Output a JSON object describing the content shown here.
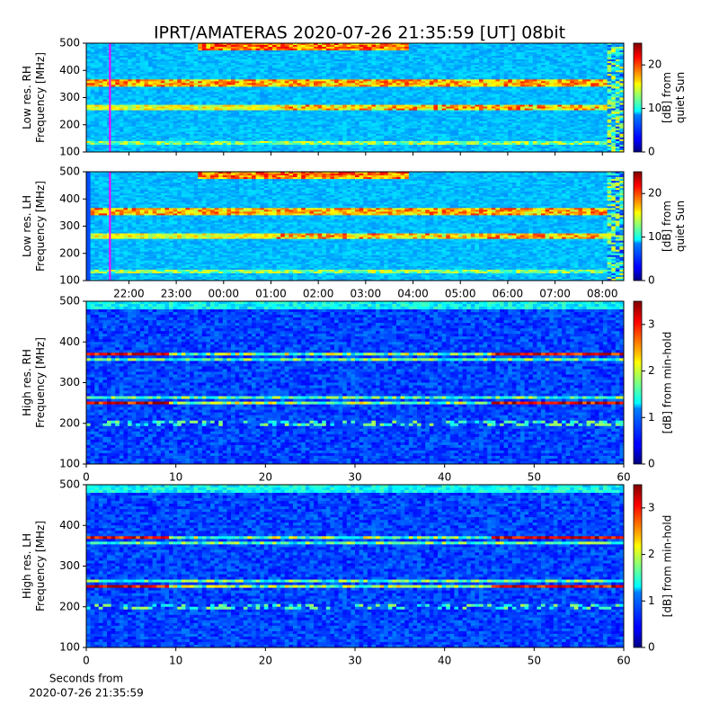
{
  "title": "IPRT/AMATERAS 2020-07-26 21:35:59 [UT]   08bit",
  "chart_data": [
    {
      "type": "heatmap",
      "ylabel": [
        "Low res. RH",
        "Frequency [MHz]"
      ],
      "xlim": [
        21.1,
        32.45
      ],
      "xticks": [
        22,
        23,
        24,
        25,
        26,
        27,
        28,
        29,
        30,
        31,
        32
      ],
      "ylim": [
        100,
        500
      ],
      "yticks": [
        100,
        200,
        300,
        400,
        500
      ],
      "marker_x": 21.6,
      "marker_color": "#ff00ff",
      "colorbar_label": [
        "[dB] from",
        "quiet Sun"
      ],
      "clim": [
        0,
        25
      ],
      "cticks": [
        0,
        10,
        20
      ]
    },
    {
      "type": "heatmap",
      "ylabel": [
        "Low res. LH",
        "Frequency [MHz]"
      ],
      "xlim": [
        21.1,
        32.45
      ],
      "xticks": [
        {
          "value": 22,
          "label": "22:00"
        },
        {
          "value": 23,
          "label": "23:00"
        },
        {
          "value": 24,
          "label": "00:00"
        },
        {
          "value": 25,
          "label": "01:00"
        },
        {
          "value": 26,
          "label": "02:00"
        },
        {
          "value": 27,
          "label": "03:00"
        },
        {
          "value": 28,
          "label": "04:00"
        },
        {
          "value": 29,
          "label": "05:00"
        },
        {
          "value": 30,
          "label": "06:00"
        },
        {
          "value": 31,
          "label": "07:00"
        },
        {
          "value": 32,
          "label": "08:00"
        }
      ],
      "ylim": [
        100,
        500
      ],
      "yticks": [
        100,
        200,
        300,
        400,
        500
      ],
      "marker_x": 21.6,
      "marker_color": "#ff00ff",
      "colorbar_label": [
        "[dB] from",
        "quiet Sun"
      ],
      "clim": [
        0,
        25
      ],
      "cticks": [
        0,
        10,
        20
      ]
    },
    {
      "type": "heatmap",
      "ylabel": [
        "High res. RH",
        "Frequency [MHz]"
      ],
      "xlim": [
        0,
        60
      ],
      "xticks": [
        0,
        10,
        20,
        30,
        40,
        50,
        60
      ],
      "ylim": [
        100,
        500
      ],
      "yticks": [
        100,
        200,
        300,
        400,
        500
      ],
      "colorbar_label": [
        "[dB] from min-hold"
      ],
      "clim": [
        0,
        3.5
      ],
      "cticks": [
        0,
        1,
        2,
        3
      ]
    },
    {
      "type": "heatmap",
      "ylabel": [
        "High res. LH",
        "Frequency [MHz]"
      ],
      "xlabel": [
        "Seconds from",
        "2020-07-26 21:35:59"
      ],
      "xlim": [
        0,
        60
      ],
      "xticks": [
        0,
        10,
        20,
        30,
        40,
        50,
        60
      ],
      "ylim": [
        100,
        500
      ],
      "yticks": [
        100,
        200,
        300,
        400,
        500
      ],
      "colorbar_label": [
        "[dB] from min-hold"
      ],
      "clim": [
        0,
        3.5
      ],
      "cticks": [
        0,
        1,
        2,
        3
      ]
    }
  ]
}
